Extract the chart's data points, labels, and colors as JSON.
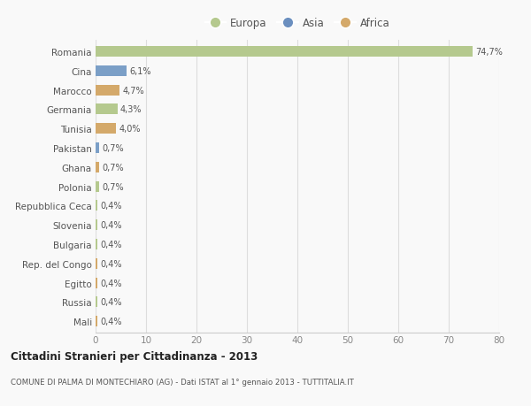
{
  "countries": [
    "Romania",
    "Cina",
    "Marocco",
    "Germania",
    "Tunisia",
    "Pakistan",
    "Ghana",
    "Polonia",
    "Repubblica Ceca",
    "Slovenia",
    "Bulgaria",
    "Rep. del Congo",
    "Egitto",
    "Russia",
    "Mali"
  ],
  "values": [
    74.7,
    6.1,
    4.7,
    4.3,
    4.0,
    0.7,
    0.7,
    0.7,
    0.4,
    0.4,
    0.4,
    0.4,
    0.4,
    0.4,
    0.4
  ],
  "labels": [
    "74,7%",
    "6,1%",
    "4,7%",
    "4,3%",
    "4,0%",
    "0,7%",
    "0,7%",
    "0,7%",
    "0,4%",
    "0,4%",
    "0,4%",
    "0,4%",
    "0,4%",
    "0,4%",
    "0,4%"
  ],
  "continents": [
    "Europa",
    "Asia",
    "Africa",
    "Europa",
    "Africa",
    "Asia",
    "Africa",
    "Europa",
    "Europa",
    "Europa",
    "Europa",
    "Africa",
    "Africa",
    "Europa",
    "Africa"
  ],
  "colors": {
    "Europa": "#b5c98e",
    "Asia": "#7b9fc7",
    "Africa": "#d4a96a"
  },
  "legend_colors": {
    "Europa": "#b5c98e",
    "Asia": "#6b8fbf",
    "Africa": "#d4a96a"
  },
  "xlim": [
    0,
    80
  ],
  "xticks": [
    0,
    10,
    20,
    30,
    40,
    50,
    60,
    70,
    80
  ],
  "title": "Cittadini Stranieri per Cittadinanza - 2013",
  "subtitle": "COMUNE DI PALMA DI MONTECHIARO (AG) - Dati ISTAT al 1° gennaio 2013 - TUTTITALIA.IT",
  "bg_color": "#f9f9f9",
  "grid_color": "#dddddd",
  "bar_height": 0.55,
  "figsize": [
    6.0,
    4.6
  ],
  "dpi": 100
}
